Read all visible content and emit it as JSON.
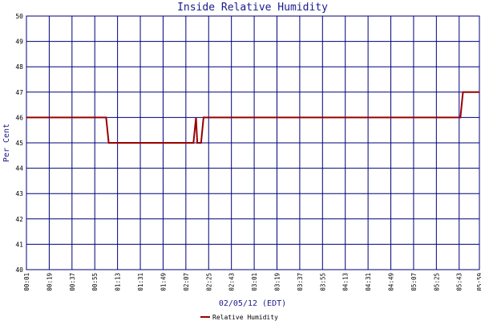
{
  "chart_data": {
    "type": "line",
    "title": "Inside Relative Humidity",
    "xlabel": "02/05/12 (EDT)",
    "ylabel": "Per Cent",
    "ylim": [
      40,
      50
    ],
    "yticks": [
      "40",
      "41",
      "42",
      "43",
      "44",
      "45",
      "46",
      "47",
      "48",
      "49",
      "50"
    ],
    "xticks": [
      "00:01",
      "00:19",
      "00:37",
      "00:55",
      "01:13",
      "01:31",
      "01:49",
      "02:07",
      "02:25",
      "02:43",
      "03:01",
      "03:19",
      "03:37",
      "03:55",
      "04:13",
      "04:31",
      "04:49",
      "05:07",
      "05:25",
      "05:43",
      "05:59"
    ],
    "xlim": [
      "00:01",
      "05:59"
    ],
    "grid": true,
    "legend_position": "bottom-center",
    "series": [
      {
        "name": "Relative Humidity",
        "color": "#990000",
        "points": [
          [
            "00:01",
            46
          ],
          [
            "01:04",
            46
          ],
          [
            "01:06",
            45
          ],
          [
            "02:13",
            45
          ],
          [
            "02:15",
            46
          ],
          [
            "02:16",
            45
          ],
          [
            "02:19",
            45
          ],
          [
            "02:21",
            46
          ],
          [
            "05:44",
            46
          ],
          [
            "05:46",
            47
          ],
          [
            "05:59",
            47
          ]
        ]
      }
    ]
  },
  "colors": {
    "frame": "#00007a",
    "grid": "#00007a"
  }
}
